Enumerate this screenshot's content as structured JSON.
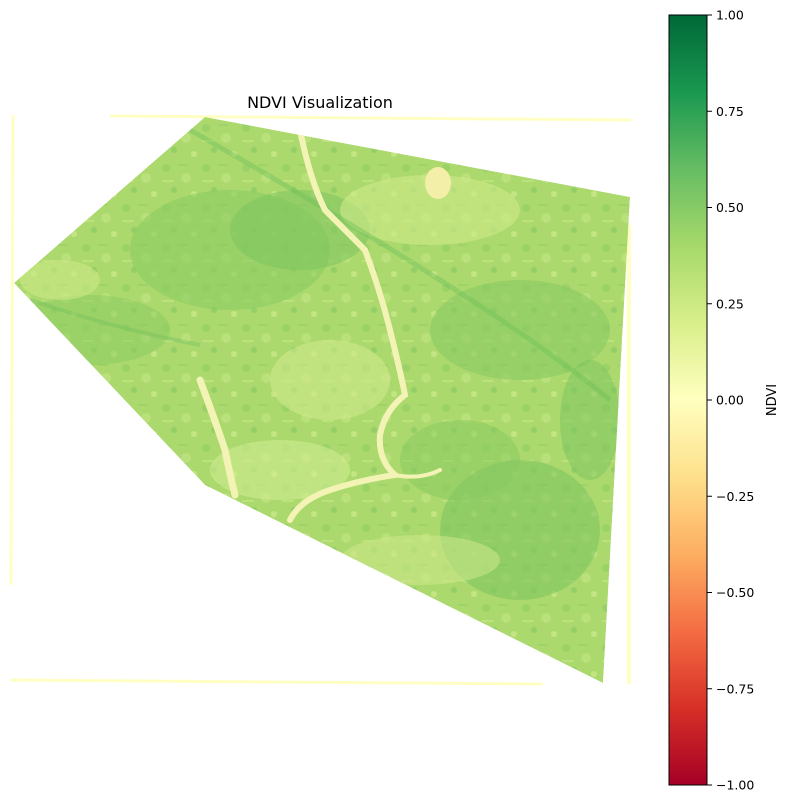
{
  "chart_data": {
    "type": "heatmap",
    "title": "NDVI Visualization",
    "colormap": "RdYlGn",
    "axes_visible": false,
    "colorbar": {
      "label": "NDVI",
      "vmin": -1.0,
      "vmax": 1.0,
      "placement": "right",
      "ticks": [
        {
          "value": 1.0,
          "label": "1.00"
        },
        {
          "value": 0.75,
          "label": "0.75"
        },
        {
          "value": 0.5,
          "label": "0.50"
        },
        {
          "value": 0.25,
          "label": "0.25"
        },
        {
          "value": 0.0,
          "label": "0.00"
        },
        {
          "value": -0.25,
          "label": "−0.25"
        },
        {
          "value": -0.5,
          "label": "−0.50"
        },
        {
          "value": -0.75,
          "label": "−0.75"
        },
        {
          "value": -1.0,
          "label": "−1.00"
        }
      ],
      "gradient_stops": [
        "#a50026",
        "#d73027",
        "#f46d43",
        "#fdae61",
        "#fee08b",
        "#ffffbf",
        "#d9ef8b",
        "#a6d96a",
        "#66bd63",
        "#1a9850",
        "#006837"
      ]
    },
    "colors": {
      "vegetation_dense": "#7cc35f",
      "vegetation_moderate": "#a8d96c",
      "vegetation_sparse": "#cde98a",
      "water_river": "#f3f3b5",
      "nodata_edge": "#ffffc4"
    }
  }
}
